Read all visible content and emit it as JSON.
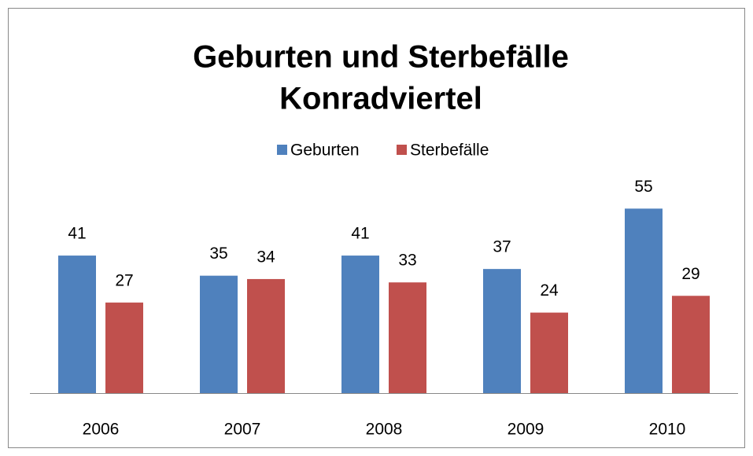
{
  "chart_data": {
    "type": "bar",
    "title": [
      "Geburten und Sterbefälle",
      "Konradviertel"
    ],
    "categories": [
      "2006",
      "2007",
      "2008",
      "2009",
      "2010"
    ],
    "series": [
      {
        "name": "Geburten",
        "color": "#4f81bd",
        "values": [
          41,
          35,
          41,
          37,
          55
        ]
      },
      {
        "name": "Sterbefälle",
        "color": "#c0504d",
        "values": [
          27,
          34,
          33,
          24,
          29
        ]
      }
    ],
    "ylim": [
      0,
      60
    ],
    "legend": "top"
  }
}
